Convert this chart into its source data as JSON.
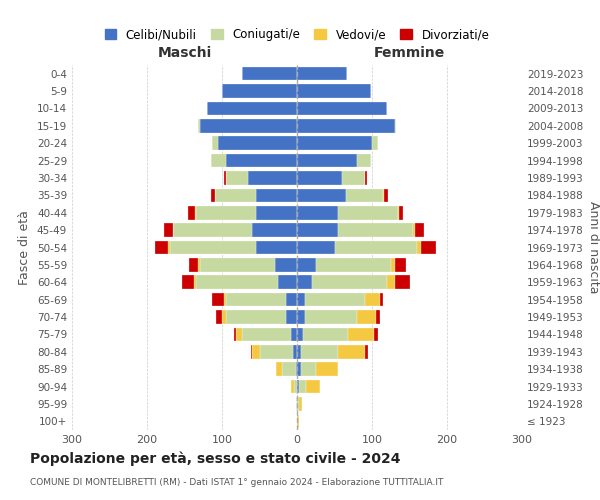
{
  "age_groups": [
    "0-4",
    "5-9",
    "10-14",
    "15-19",
    "20-24",
    "25-29",
    "30-34",
    "35-39",
    "40-44",
    "45-49",
    "50-54",
    "55-59",
    "60-64",
    "65-69",
    "70-74",
    "75-79",
    "80-84",
    "85-89",
    "90-94",
    "95-99",
    "100+"
  ],
  "birth_years": [
    "2019-2023",
    "2014-2018",
    "2009-2013",
    "2004-2008",
    "1999-2003",
    "1994-1998",
    "1989-1993",
    "1984-1988",
    "1979-1983",
    "1974-1978",
    "1969-1973",
    "1964-1968",
    "1959-1963",
    "1954-1958",
    "1949-1953",
    "1944-1948",
    "1939-1943",
    "1934-1938",
    "1929-1933",
    "1924-1928",
    "≤ 1923"
  ],
  "maschi": {
    "celibi": [
      73,
      100,
      120,
      130,
      105,
      95,
      65,
      55,
      55,
      60,
      55,
      30,
      25,
      15,
      15,
      8,
      5,
      2,
      0,
      0,
      0
    ],
    "coniugati": [
      0,
      0,
      0,
      2,
      8,
      20,
      30,
      55,
      80,
      105,
      115,
      100,
      110,
      80,
      80,
      65,
      45,
      18,
      4,
      1,
      0
    ],
    "vedovi": [
      0,
      0,
      0,
      0,
      0,
      0,
      0,
      0,
      1,
      1,
      2,
      2,
      3,
      3,
      5,
      8,
      10,
      8,
      4,
      1,
      0
    ],
    "divorziati": [
      0,
      0,
      0,
      0,
      0,
      0,
      3,
      5,
      10,
      12,
      18,
      12,
      15,
      15,
      8,
      3,
      2,
      0,
      0,
      0,
      0
    ]
  },
  "femmine": {
    "nubili": [
      66,
      98,
      120,
      130,
      100,
      80,
      60,
      65,
      55,
      55,
      50,
      25,
      20,
      10,
      10,
      8,
      5,
      5,
      2,
      0,
      0
    ],
    "coniugate": [
      0,
      0,
      0,
      2,
      8,
      18,
      30,
      50,
      80,
      100,
      110,
      100,
      100,
      80,
      70,
      60,
      50,
      20,
      10,
      3,
      0
    ],
    "vedove": [
      0,
      0,
      0,
      0,
      0,
      0,
      0,
      1,
      1,
      2,
      5,
      5,
      10,
      20,
      25,
      35,
      35,
      30,
      18,
      4,
      2
    ],
    "divorziate": [
      0,
      0,
      0,
      0,
      0,
      0,
      3,
      5,
      5,
      12,
      20,
      15,
      20,
      5,
      5,
      5,
      4,
      0,
      0,
      0,
      0
    ]
  },
  "colors": {
    "celibi": "#4472c4",
    "coniugati": "#c5d9a0",
    "vedovi": "#f5c842",
    "divorziati": "#cc0000"
  },
  "xlim": 300,
  "title": "Popolazione per età, sesso e stato civile - 2024",
  "subtitle": "COMUNE DI MONTELIBRETTI (RM) - Dati ISTAT 1° gennaio 2024 - Elaborazione TUTTITALIA.IT",
  "ylabel_left": "Fasce di età",
  "ylabel_right": "Anni di nascita",
  "xlabel_maschi": "Maschi",
  "xlabel_femmine": "Femmine",
  "legend": [
    "Celibi/Nubili",
    "Coniugati/e",
    "Vedovi/e",
    "Divorziati/e"
  ]
}
